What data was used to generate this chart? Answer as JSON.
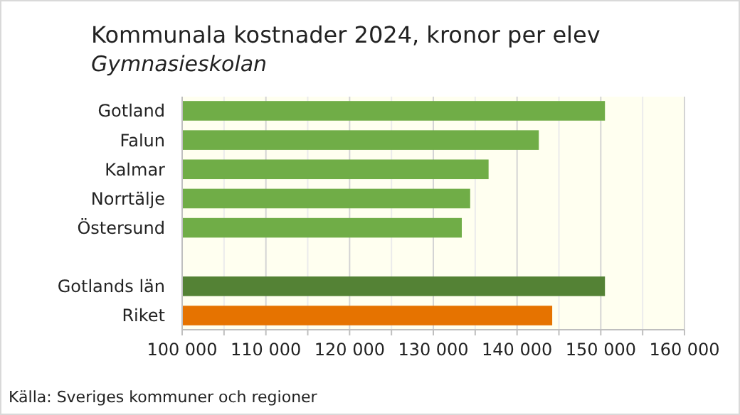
{
  "chart_data": {
    "type": "bar",
    "orientation": "horizontal",
    "title": "Kommunala kostnader 2024, kronor per elev",
    "subtitle": "Gymnasieskolan",
    "categories": [
      "Gotland",
      "Falun",
      "Kalmar",
      "Norrtälje",
      "Östersund",
      null,
      "Gotlands län",
      "Riket"
    ],
    "values": [
      150500,
      142600,
      136600,
      134400,
      133400,
      null,
      150500,
      144200
    ],
    "colors": [
      "#70ad47",
      "#70ad47",
      "#70ad47",
      "#70ad47",
      "#70ad47",
      null,
      "#548235",
      "#e67300"
    ],
    "xlim": [
      100000,
      160000
    ],
    "xticks": [
      {
        "value": 100000,
        "label": "100 000"
      },
      {
        "value": 105000,
        "label": null
      },
      {
        "value": 110000,
        "label": "110 000"
      },
      {
        "value": 115000,
        "label": null
      },
      {
        "value": 120000,
        "label": "120 000"
      },
      {
        "value": 125000,
        "label": null
      },
      {
        "value": 130000,
        "label": "130 000"
      },
      {
        "value": 135000,
        "label": null
      },
      {
        "value": 140000,
        "label": "140 000"
      },
      {
        "value": 145000,
        "label": null
      },
      {
        "value": 150000,
        "label": "150 000"
      },
      {
        "value": 155000,
        "label": null
      },
      {
        "value": 160000,
        "label": "160 000"
      }
    ],
    "grid": "x",
    "annotations": [
      "Källa: Sveriges kommuner och regioner"
    ]
  }
}
